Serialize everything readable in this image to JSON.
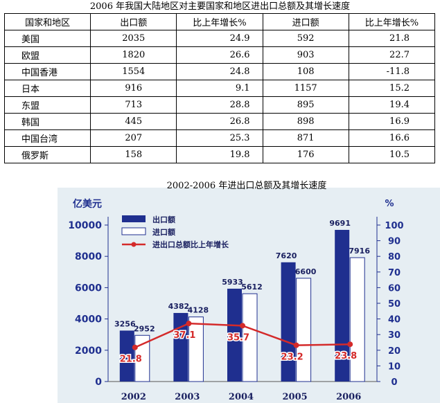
{
  "table": {
    "title": "2006 年我国大陆地区对主要国家和地区进出口总额及其增长速度",
    "headers": [
      "国家和地区",
      "出口额",
      "比上年增长%",
      "进口额",
      "比上年增长%"
    ],
    "rows": [
      {
        "name": "美国",
        "export": "2035",
        "export_growth": "24.9",
        "import": "592",
        "import_growth": "21.8"
      },
      {
        "name": "欧盟",
        "export": "1820",
        "export_growth": "26.6",
        "import": "903",
        "import_growth": "22.7"
      },
      {
        "name": "中国香港",
        "export": "1554",
        "export_growth": "24.8",
        "import": "108",
        "import_growth": "-11.8"
      },
      {
        "name": "日本",
        "export": "916",
        "export_growth": "9.1",
        "import": "1157",
        "import_growth": "15.2"
      },
      {
        "name": "东盟",
        "export": "713",
        "export_growth": "28.8",
        "import": "895",
        "import_growth": "19.4"
      },
      {
        "name": "韩国",
        "export": "445",
        "export_growth": "26.8",
        "import": "898",
        "import_growth": "16.9"
      },
      {
        "name": "中国台湾",
        "export": "207",
        "export_growth": "25.3",
        "import": "871",
        "import_growth": "16.6"
      },
      {
        "name": "俄罗斯",
        "export": "158",
        "export_growth": "19.8",
        "import": "176",
        "import_growth": "10.5"
      }
    ]
  },
  "chart_data": {
    "type": "bar",
    "title": "2002-2006 年进出口总额及其增长速度",
    "ylabel": "亿美元",
    "y2label": "%",
    "categories": [
      "2002",
      "2003",
      "2004",
      "2005",
      "2006"
    ],
    "ylim": [
      0,
      10000
    ],
    "yticks": [
      0,
      2000,
      4000,
      6000,
      8000,
      10000
    ],
    "y2lim": [
      0,
      100
    ],
    "y2ticks": [
      0,
      10,
      20,
      30,
      40,
      50,
      60,
      70,
      80,
      90,
      100
    ],
    "legend_position": "top-left",
    "series": [
      {
        "name": "出口额",
        "type": "bar",
        "color": "#1f2f8f",
        "values": [
          3256,
          4382,
          5933,
          7620,
          9691
        ]
      },
      {
        "name": "进口额",
        "type": "bar",
        "color": "#ffffff",
        "values": [
          2952,
          4128,
          5612,
          6600,
          7916
        ]
      },
      {
        "name": "进出口总额比上年增长",
        "type": "line",
        "color": "#d42a2a",
        "axis": "right",
        "values": [
          21.8,
          37.1,
          35.7,
          23.2,
          23.8
        ]
      }
    ],
    "colors": {
      "background": "#e6eef3",
      "axis": "#1f2f8f",
      "line": "#d42a2a"
    }
  }
}
